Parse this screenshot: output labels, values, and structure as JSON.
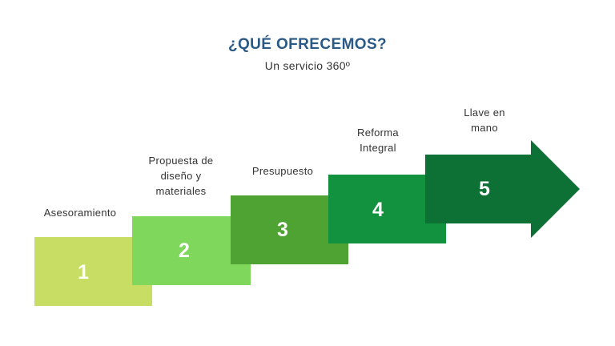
{
  "header": {
    "title": "¿QUÉ OFRECEMOS?",
    "subtitle": "Un servicio 360º"
  },
  "steps": [
    {
      "number": "1",
      "label": "Asesoramiento",
      "color": "#c8dd63",
      "fold_color": "#a9e3a6"
    },
    {
      "number": "2",
      "label": "Propuesta de diseño y materiales",
      "color": "#7fd85c",
      "fold_color": "#5fd49c"
    },
    {
      "number": "3",
      "label": "Presupuesto",
      "color": "#4ea332",
      "fold_color": "#2f9a86"
    },
    {
      "number": "4",
      "label": "Reforma Integral",
      "color": "#12913e",
      "fold_color": "#1d6f84"
    },
    {
      "number": "5",
      "label": "Llave en mano",
      "color": "#0d7034"
    }
  ]
}
